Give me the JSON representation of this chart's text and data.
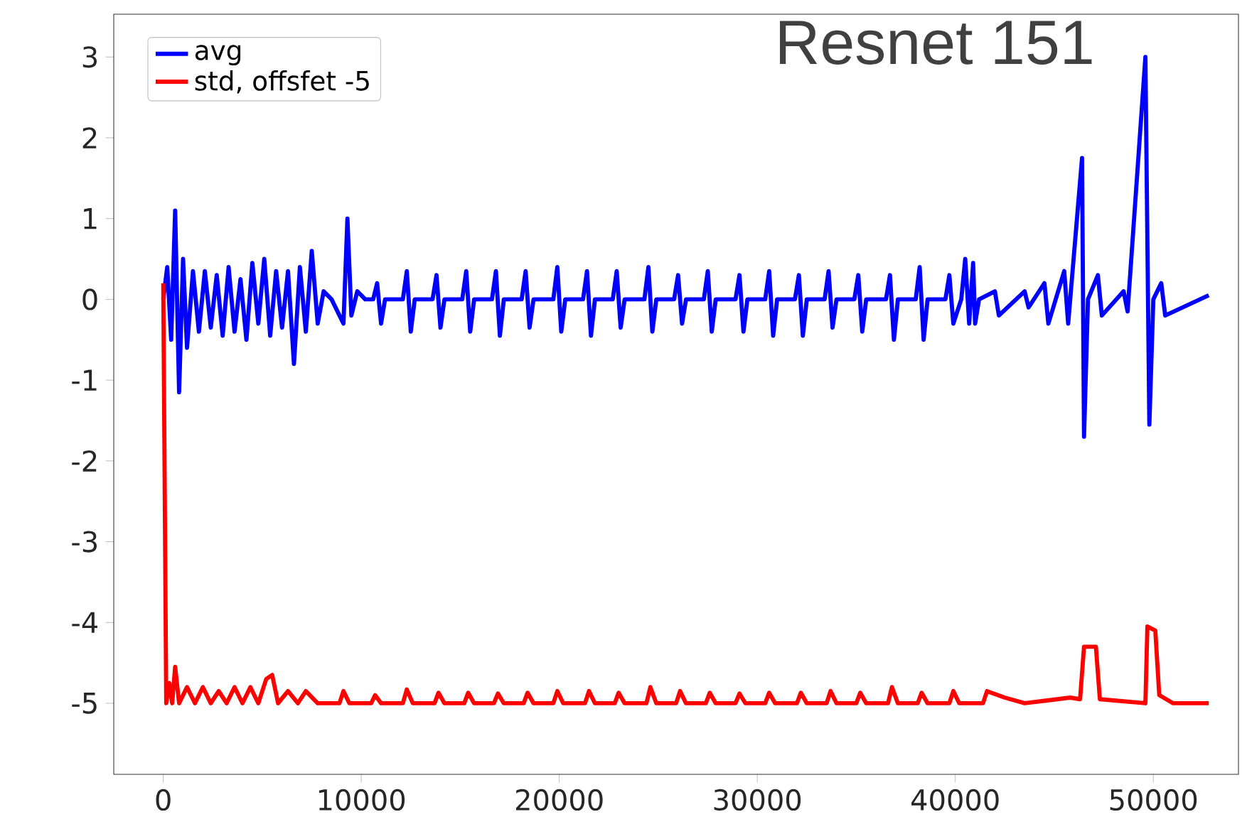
{
  "chart_data": {
    "type": "line",
    "title": "Resnet 151",
    "xlim": [
      -2500,
      54300
    ],
    "ylim": [
      -5.88,
      3.53
    ],
    "xticks": [
      0,
      10000,
      20000,
      30000,
      40000,
      50000
    ],
    "yticks": [
      -5,
      -4,
      -3,
      -2,
      -1,
      0,
      1,
      2,
      3
    ],
    "legend": "top left",
    "grid": false,
    "series": [
      {
        "name": "avg",
        "color": "#0000ff",
        "x": [
          0,
          200,
          400,
          600,
          800,
          1000,
          1200,
          1500,
          1800,
          2100,
          2400,
          2700,
          3000,
          3300,
          3600,
          3900,
          4200,
          4500,
          4800,
          5100,
          5400,
          5700,
          6000,
          6300,
          6600,
          6900,
          7200,
          7500,
          7800,
          8100,
          8500,
          9100,
          9300,
          9500,
          9800,
          10200,
          10600,
          10800,
          11000,
          11200,
          12100,
          12300,
          12500,
          12700,
          13600,
          13800,
          14000,
          14200,
          15100,
          15300,
          15500,
          15700,
          16600,
          16800,
          17000,
          17200,
          18100,
          18300,
          18500,
          18700,
          19700,
          19900,
          20100,
          20300,
          21200,
          21400,
          21600,
          21800,
          22700,
          22900,
          23100,
          23300,
          24300,
          24500,
          24700,
          24900,
          25800,
          26000,
          26200,
          26400,
          27300,
          27500,
          27700,
          27900,
          28900,
          29100,
          29300,
          29500,
          30400,
          30600,
          30800,
          31000,
          31900,
          32100,
          32300,
          32500,
          33400,
          33600,
          33800,
          34000,
          34900,
          35100,
          35300,
          35500,
          36500,
          36700,
          36900,
          37100,
          38000,
          38200,
          38400,
          38600,
          39500,
          39700,
          39900,
          40300,
          40500,
          40700,
          40900,
          41000,
          41200,
          42000,
          42200,
          43500,
          43700,
          44500,
          44700,
          45500,
          45700,
          46400,
          46500,
          46700,
          47200,
          47400,
          48500,
          48700,
          49600,
          49800,
          50000,
          50400,
          50600,
          52800
        ],
        "values": [
          0,
          0.4,
          -0.5,
          1.1,
          -1.15,
          0.5,
          -0.6,
          0.35,
          -0.4,
          0.35,
          -0.35,
          0.3,
          -0.45,
          0.4,
          -0.4,
          0.25,
          -0.5,
          0.45,
          -0.3,
          0.5,
          -0.45,
          0.35,
          -0.35,
          0.35,
          -0.8,
          0.4,
          -0.4,
          0.6,
          -0.3,
          0.1,
          0,
          -0.3,
          1.0,
          -0.2,
          0.1,
          0,
          0,
          0.2,
          -0.3,
          0,
          0,
          0.35,
          -0.4,
          0,
          0,
          0.3,
          -0.35,
          0,
          0,
          0.35,
          -0.4,
          0,
          0,
          0.35,
          -0.45,
          0,
          0,
          0.35,
          -0.35,
          0,
          0,
          0.4,
          -0.4,
          0,
          0,
          0.35,
          -0.45,
          0,
          0,
          0.35,
          -0.35,
          0,
          0,
          0.4,
          -0.4,
          0,
          0,
          0.3,
          -0.3,
          0,
          0,
          0.35,
          -0.4,
          0,
          0,
          0.3,
          -0.4,
          0,
          0,
          0.35,
          -0.45,
          0,
          0,
          0.3,
          -0.45,
          0,
          0,
          0.35,
          -0.35,
          0,
          0,
          0.3,
          -0.4,
          0,
          0,
          0.3,
          -0.5,
          0,
          0,
          0.4,
          -0.5,
          0,
          0,
          0.3,
          -0.3,
          0,
          0.5,
          -0.3,
          0.45,
          -0.3,
          0,
          0.1,
          -0.2,
          0.1,
          -0.1,
          0.2,
          -0.3,
          0.35,
          -0.3,
          1.75,
          -1.7,
          0,
          0.3,
          -0.2,
          0.1,
          -0.15,
          3.0,
          -1.55,
          0,
          0.2,
          -0.2,
          0.05
        ]
      },
      {
        "name": "std, offsfet -5",
        "color": "#ff0000",
        "x": [
          0,
          150,
          300,
          450,
          600,
          800,
          1200,
          1600,
          2000,
          2400,
          2800,
          3200,
          3600,
          4000,
          4400,
          4800,
          5200,
          5500,
          5800,
          6300,
          6800,
          7200,
          7800,
          8500,
          8900,
          9100,
          9400,
          10500,
          10700,
          11000,
          12100,
          12300,
          12600,
          13700,
          13900,
          14200,
          15200,
          15400,
          15700,
          16700,
          16900,
          17200,
          18200,
          18400,
          18700,
          19700,
          19900,
          20200,
          21300,
          21500,
          21800,
          22800,
          23000,
          23300,
          24400,
          24600,
          24900,
          25900,
          26100,
          26400,
          27400,
          27600,
          27900,
          28900,
          29100,
          29400,
          30400,
          30600,
          30900,
          32000,
          32200,
          32500,
          33500,
          33700,
          34000,
          35000,
          35200,
          35500,
          36600,
          36800,
          37100,
          38100,
          38300,
          38600,
          39700,
          39900,
          40200,
          41400,
          41600,
          42500,
          43500,
          44500,
          45800,
          46300,
          46500,
          47100,
          47300,
          49600,
          49700,
          50100,
          50300,
          51000,
          52800
        ],
        "values": [
          0.2,
          -5.0,
          -4.75,
          -5.0,
          -4.55,
          -5.0,
          -4.8,
          -5.0,
          -4.8,
          -5.0,
          -4.85,
          -5.0,
          -4.8,
          -5.0,
          -4.8,
          -5.0,
          -4.7,
          -4.65,
          -5.0,
          -4.85,
          -5.0,
          -4.85,
          -5.0,
          -5.0,
          -5.0,
          -4.85,
          -5.0,
          -5.0,
          -4.9,
          -5.0,
          -5.0,
          -4.83,
          -5.0,
          -5.0,
          -4.87,
          -5.0,
          -5.0,
          -4.87,
          -5.0,
          -5.0,
          -4.88,
          -5.0,
          -5.0,
          -4.87,
          -5.0,
          -5.0,
          -4.85,
          -5.0,
          -5.0,
          -4.85,
          -5.0,
          -5.0,
          -4.87,
          -5.0,
          -5.0,
          -4.8,
          -5.0,
          -5.0,
          -4.85,
          -5.0,
          -5.0,
          -4.87,
          -5.0,
          -5.0,
          -4.88,
          -5.0,
          -5.0,
          -4.87,
          -5.0,
          -5.0,
          -4.87,
          -5.0,
          -5.0,
          -4.85,
          -5.0,
          -5.0,
          -4.87,
          -5.0,
          -5.0,
          -4.8,
          -5.0,
          -5.0,
          -4.87,
          -5.0,
          -5.0,
          -4.85,
          -5.0,
          -5.0,
          -4.85,
          -4.93,
          -5.0,
          -4.97,
          -4.93,
          -4.95,
          -4.3,
          -4.3,
          -4.95,
          -5.0,
          -4.05,
          -4.1,
          -4.9,
          -5.0,
          -5.0
        ]
      }
    ]
  }
}
